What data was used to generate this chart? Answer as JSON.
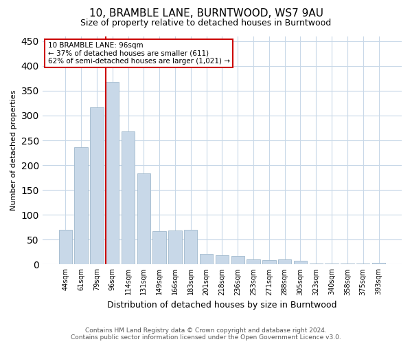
{
  "title": "10, BRAMBLE LANE, BURNTWOOD, WS7 9AU",
  "subtitle": "Size of property relative to detached houses in Burntwood",
  "xlabel": "Distribution of detached houses by size in Burntwood",
  "ylabel": "Number of detached properties",
  "categories": [
    "44sqm",
    "61sqm",
    "79sqm",
    "96sqm",
    "114sqm",
    "131sqm",
    "149sqm",
    "166sqm",
    "183sqm",
    "201sqm",
    "218sqm",
    "236sqm",
    "253sqm",
    "271sqm",
    "288sqm",
    "305sqm",
    "323sqm",
    "340sqm",
    "358sqm",
    "375sqm",
    "393sqm"
  ],
  "values": [
    70,
    236,
    316,
    368,
    268,
    184,
    67,
    68,
    70,
    21,
    18,
    17,
    10,
    9,
    10,
    8,
    2,
    2,
    2,
    2,
    4
  ],
  "bar_color": "#c8d8e8",
  "bar_edge_color": "#a0b8cc",
  "red_line_index": 3,
  "annotation_title": "10 BRAMBLE LANE: 96sqm",
  "annotation_line1": "← 37% of detached houses are smaller (611)",
  "annotation_line2": "62% of semi-detached houses are larger (1,021) →",
  "annotation_box_color": "#ffffff",
  "annotation_box_edge": "#cc0000",
  "footer_line1": "Contains HM Land Registry data © Crown copyright and database right 2024.",
  "footer_line2": "Contains public sector information licensed under the Open Government Licence v3.0.",
  "ylim": [
    0,
    460
  ],
  "yticks": [
    0,
    50,
    100,
    150,
    200,
    250,
    300,
    350,
    400,
    450
  ],
  "background_color": "#ffffff",
  "grid_color": "#c8d8e8",
  "title_fontsize": 11,
  "subtitle_fontsize": 9,
  "ylabel_fontsize": 8,
  "xlabel_fontsize": 9,
  "tick_fontsize": 7,
  "footer_fontsize": 6.5
}
